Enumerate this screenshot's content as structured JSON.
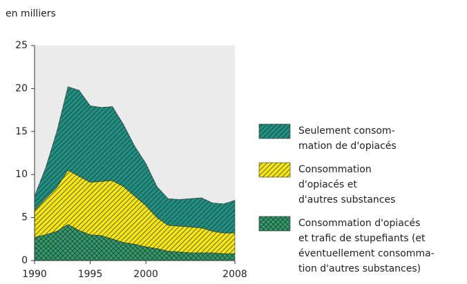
{
  "chart_data": {
    "type": "stacked_area",
    "y_label": "en milliers",
    "x": [
      1990,
      1991,
      1992,
      1993,
      1994,
      1995,
      1996,
      1997,
      1998,
      1999,
      2000,
      2001,
      2002,
      2003,
      2004,
      2005,
      2006,
      2007,
      2008
    ],
    "xlim": [
      1990,
      2008
    ],
    "xticks": [
      1990,
      1995,
      2000,
      2008
    ],
    "ylim": [
      0,
      25
    ],
    "yticks": [
      0,
      5,
      10,
      15,
      20,
      25
    ],
    "series": [
      {
        "name": "Seulement consom-\nmation de d'opiacés",
        "color": "#1f8f80",
        "hatch": "diagonal",
        "values": [
          1.7,
          3.6,
          6.5,
          9.7,
          10.0,
          8.9,
          8.6,
          8.6,
          7.2,
          5.8,
          4.9,
          3.6,
          3.1,
          3.1,
          3.3,
          3.5,
          3.3,
          3.4,
          3.8
        ]
      },
      {
        "name": "Consommation\nd'opiacés et\nd'autres substances",
        "color": "#f4e514",
        "hatch": "diagonal",
        "values": [
          3.1,
          4.2,
          5.1,
          6.3,
          6.3,
          6.1,
          6.3,
          6.8,
          6.5,
          5.6,
          4.8,
          3.6,
          3.0,
          3.0,
          3.0,
          2.9,
          2.5,
          2.4,
          2.4
        ]
      },
      {
        "name": "Consommation d'opiacés\net trafic de stupefiants (et\néventuellement consomma-\ntion d'autres substances)",
        "color": "#2f9e6c",
        "hatch": "cross",
        "values": [
          2.7,
          3.0,
          3.4,
          4.2,
          3.5,
          3.0,
          2.9,
          2.5,
          2.1,
          1.9,
          1.6,
          1.4,
          1.1,
          1.0,
          0.9,
          0.9,
          0.9,
          0.8,
          0.8
        ]
      }
    ]
  }
}
